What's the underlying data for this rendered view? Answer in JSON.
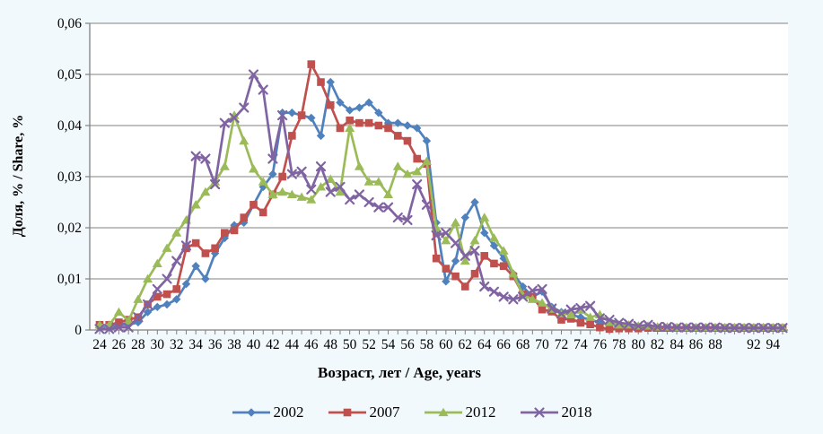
{
  "page": {
    "background": "#f2f9fc",
    "plot_background": "#ffffff",
    "gridline_color": "#9b9b9b",
    "axis_color": "#808080",
    "text_color": "#000000"
  },
  "chart_data": {
    "type": "line",
    "title": "",
    "xlabel": "Возраст, лет / Age, years",
    "ylabel": "Доля, % / Share, %",
    "ylim": [
      0,
      0.06
    ],
    "grid": "horizontal",
    "legend_position": "bottom",
    "y_tick_values": [
      0,
      0.01,
      0.02,
      0.03,
      0.04,
      0.05,
      0.06
    ],
    "y_tick_labels": [
      "0",
      "0,01",
      "0,02",
      "0,03",
      "0,04",
      "0,05",
      "0,06"
    ],
    "x_categories": [
      24,
      25,
      26,
      27,
      28,
      29,
      30,
      31,
      32,
      33,
      34,
      35,
      36,
      37,
      38,
      39,
      40,
      41,
      42,
      43,
      44,
      45,
      46,
      47,
      48,
      49,
      50,
      51,
      52,
      53,
      54,
      55,
      56,
      57,
      58,
      59,
      60,
      61,
      62,
      63,
      64,
      65,
      66,
      67,
      68,
      69,
      70,
      71,
      72,
      73,
      74,
      75,
      76,
      77,
      78,
      79,
      80,
      81,
      82,
      83,
      84,
      85,
      86,
      87,
      88,
      89,
      90,
      91,
      92,
      93,
      94,
      95
    ],
    "x_tick_labels": [
      "24",
      "26",
      "28",
      "30",
      "32",
      "34",
      "36",
      "38",
      "40",
      "42",
      "44",
      "46",
      "48",
      "50",
      "52",
      "54",
      "56",
      "58",
      "60",
      "62",
      "64",
      "66",
      "68",
      "70",
      "72",
      "74",
      "76",
      "78",
      "80",
      "82",
      "84",
      "86",
      "88",
      "92",
      "94"
    ],
    "series": [
      {
        "name": "2002",
        "color": "#4F81BD",
        "marker": "diamond",
        "values": [
          0.0005,
          0.0005,
          0.001,
          0.001,
          0.0015,
          0.0035,
          0.0045,
          0.005,
          0.006,
          0.009,
          0.0125,
          0.01,
          0.015,
          0.018,
          0.0205,
          0.021,
          0.0245,
          0.028,
          0.0305,
          0.0425,
          0.0425,
          0.042,
          0.0415,
          0.038,
          0.0485,
          0.0445,
          0.043,
          0.0435,
          0.0445,
          0.0425,
          0.0405,
          0.0405,
          0.04,
          0.0395,
          0.037,
          0.021,
          0.0095,
          0.0135,
          0.022,
          0.025,
          0.019,
          0.0165,
          0.014,
          0.011,
          0.0085,
          0.0065,
          0.0075,
          0.0045,
          0.0035,
          0.003,
          0.0025,
          0.002,
          0.0015,
          0.001,
          0.001,
          0.0008,
          0.0006,
          0.0006,
          0.0005,
          0.0005,
          0.0005,
          0.0005,
          0.0005,
          0.0005,
          0.0005,
          0.0005,
          0.0005,
          0.0005,
          0.0005,
          0.0005,
          0.0005,
          0.0005
        ]
      },
      {
        "name": "2007",
        "color": "#C0504D",
        "marker": "square",
        "values": [
          0.001,
          0.001,
          0.0015,
          0.002,
          0.0025,
          0.005,
          0.0065,
          0.007,
          0.008,
          0.016,
          0.017,
          0.015,
          0.016,
          0.019,
          0.0195,
          0.022,
          0.0245,
          0.023,
          0.0265,
          0.03,
          0.038,
          0.042,
          0.052,
          0.0485,
          0.044,
          0.0395,
          0.041,
          0.0405,
          0.0405,
          0.04,
          0.0395,
          0.038,
          0.037,
          0.0335,
          0.0325,
          0.014,
          0.012,
          0.0105,
          0.0085,
          0.011,
          0.0145,
          0.013,
          0.0125,
          0.0105,
          0.007,
          0.0065,
          0.004,
          0.0036,
          0.002,
          0.0022,
          0.0014,
          0.0011,
          0.0005,
          0.0002,
          0.0003,
          0.0003,
          0.0003,
          0.0004,
          0.0004,
          0.0004,
          0.0004,
          0.0004,
          0.0004,
          0.0004,
          0.0004,
          0.0004,
          0.0004,
          0.0004,
          0.0004,
          0.0004,
          0.0004,
          0.0004
        ]
      },
      {
        "name": "2012",
        "color": "#9BBB59",
        "marker": "triangle",
        "values": [
          0.001,
          0.001,
          0.0035,
          0.0018,
          0.006,
          0.01,
          0.013,
          0.016,
          0.019,
          0.0215,
          0.0245,
          0.027,
          0.029,
          0.032,
          0.042,
          0.037,
          0.0315,
          0.029,
          0.0265,
          0.027,
          0.0265,
          0.026,
          0.0255,
          0.028,
          0.0295,
          0.027,
          0.0395,
          0.032,
          0.029,
          0.029,
          0.0265,
          0.032,
          0.0305,
          0.031,
          0.033,
          0.02,
          0.0175,
          0.021,
          0.0135,
          0.0175,
          0.022,
          0.018,
          0.0155,
          0.011,
          0.0068,
          0.006,
          0.0053,
          0.0041,
          0.0032,
          0.003,
          0.0039,
          0.0025,
          0.003,
          0.0015,
          0.001,
          0.001,
          0.0008,
          0.0008,
          0.0006,
          0.0006,
          0.0005,
          0.0005,
          0.0005,
          0.0005,
          0.0005,
          0.0005,
          0.0005,
          0.0005,
          0.0005,
          0.0005,
          0.0005,
          0.0005
        ]
      },
      {
        "name": "2018",
        "color": "#8064A2",
        "marker": "x",
        "values": [
          0.0002,
          0.0002,
          0.0005,
          0.0005,
          0.0025,
          0.005,
          0.008,
          0.01,
          0.0135,
          0.0165,
          0.034,
          0.0335,
          0.0285,
          0.0405,
          0.0415,
          0.0435,
          0.05,
          0.047,
          0.0335,
          0.042,
          0.0305,
          0.031,
          0.0275,
          0.032,
          0.027,
          0.028,
          0.0255,
          0.0265,
          0.025,
          0.024,
          0.024,
          0.022,
          0.0215,
          0.0285,
          0.0245,
          0.0185,
          0.019,
          0.017,
          0.0145,
          0.0155,
          0.0085,
          0.0075,
          0.0065,
          0.006,
          0.0065,
          0.0077,
          0.008,
          0.0042,
          0.0032,
          0.004,
          0.0043,
          0.0047,
          0.0023,
          0.002,
          0.0014,
          0.0012,
          0.0008,
          0.001,
          0.0006,
          0.0006,
          0.0005,
          0.0005,
          0.0005,
          0.0005,
          0.0005,
          0.0004,
          0.0004,
          0.0004,
          0.0004,
          0.0004,
          0.0004,
          0.0004
        ]
      }
    ]
  }
}
